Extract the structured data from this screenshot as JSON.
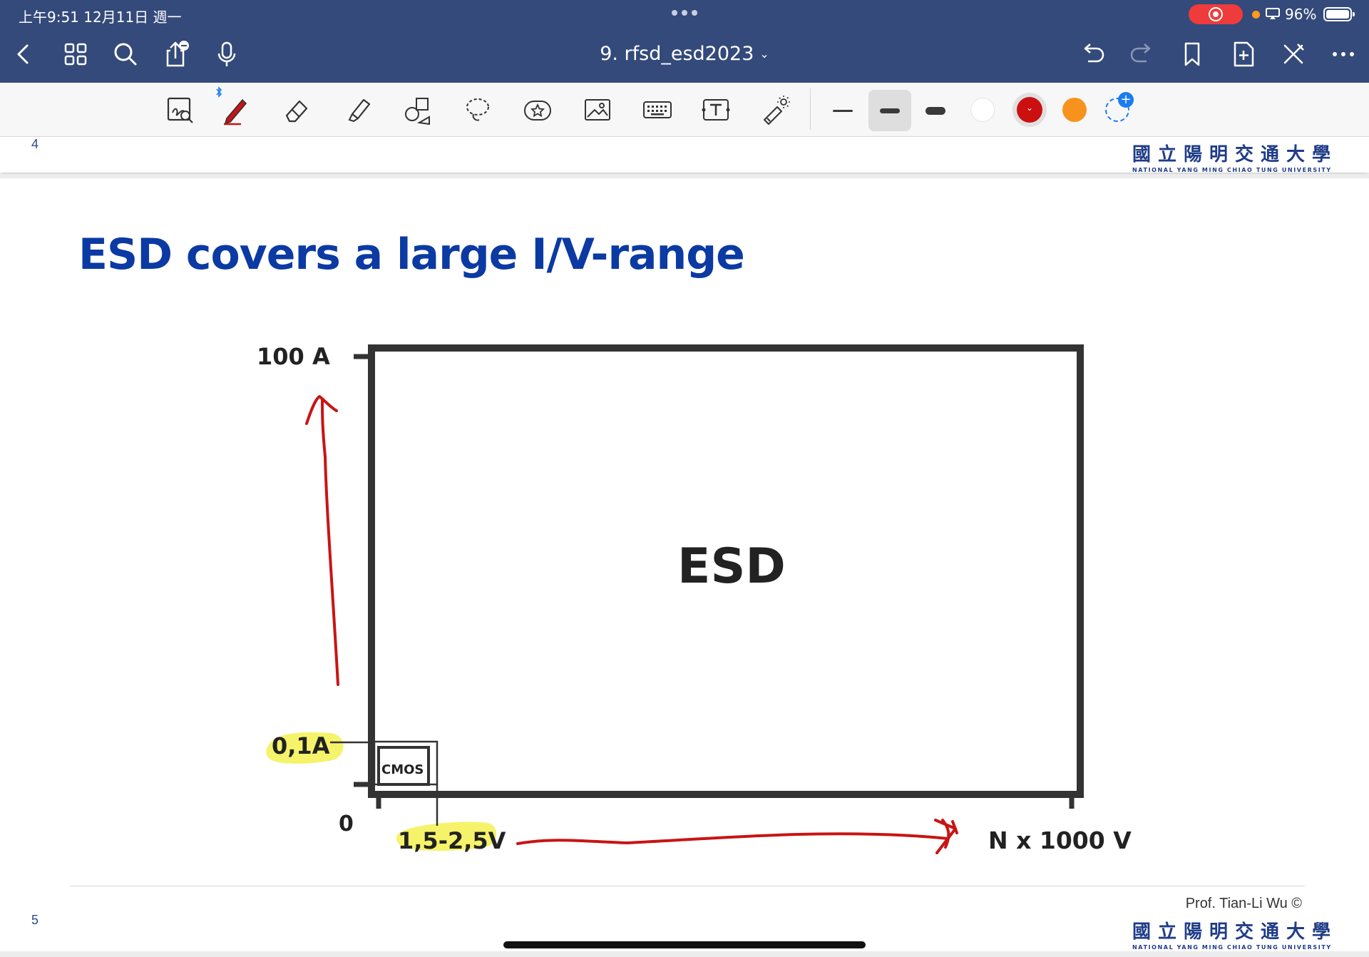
{
  "status_bar": {
    "time_date": "上午9:51   12月11日 週一",
    "battery": "96%"
  },
  "nav": {
    "doc_title": "9. rfsd_esd2023",
    "icons": [
      "back-icon",
      "grid-icon",
      "search-icon",
      "share-icon",
      "microphone-icon",
      "undo-icon",
      "redo-icon",
      "bookmark-icon",
      "add-page-icon",
      "close-tools-icon",
      "more-icon"
    ]
  },
  "toolbar": {
    "tools": [
      "zoom-lasso-icon",
      "pen-icon",
      "eraser-icon",
      "highlighter-icon",
      "shapes-icon",
      "lasso-icon",
      "sticker-icon",
      "image-icon",
      "keyboard-icon",
      "text-box-icon",
      "laser-pointer-icon"
    ],
    "colors": {
      "white": "#ffffff",
      "red": "#cc1010",
      "orange": "#f7921d",
      "add": "#1a7cf0"
    }
  },
  "page_prev": {
    "number": "4",
    "logo_cn": "國立陽明交通大學",
    "logo_en": "NATIONAL YANG MING CHIAO TUNG UNIVERSITY"
  },
  "slide": {
    "number": "5",
    "title": "ESD covers a large I/V-range",
    "label_100a": "100 A",
    "label_01a": "0,1A",
    "label_zero": "0",
    "label_voltage": "1,5-2,5V",
    "label_nkv": "N x 1000 V",
    "box_label": "ESD",
    "cmos_label": "CMOS",
    "author": "Prof. Tian-Li Wu ©",
    "logo_cn": "國立陽明交通大學",
    "logo_en": "NATIONAL YANG MING CHIAO TUNG UNIVERSITY"
  },
  "colors": {
    "nav_bg": "#344a7a",
    "title_blue": "#0b3aa3",
    "ink_red": "#c81414",
    "highlight_yellow": "#f4f25a"
  }
}
